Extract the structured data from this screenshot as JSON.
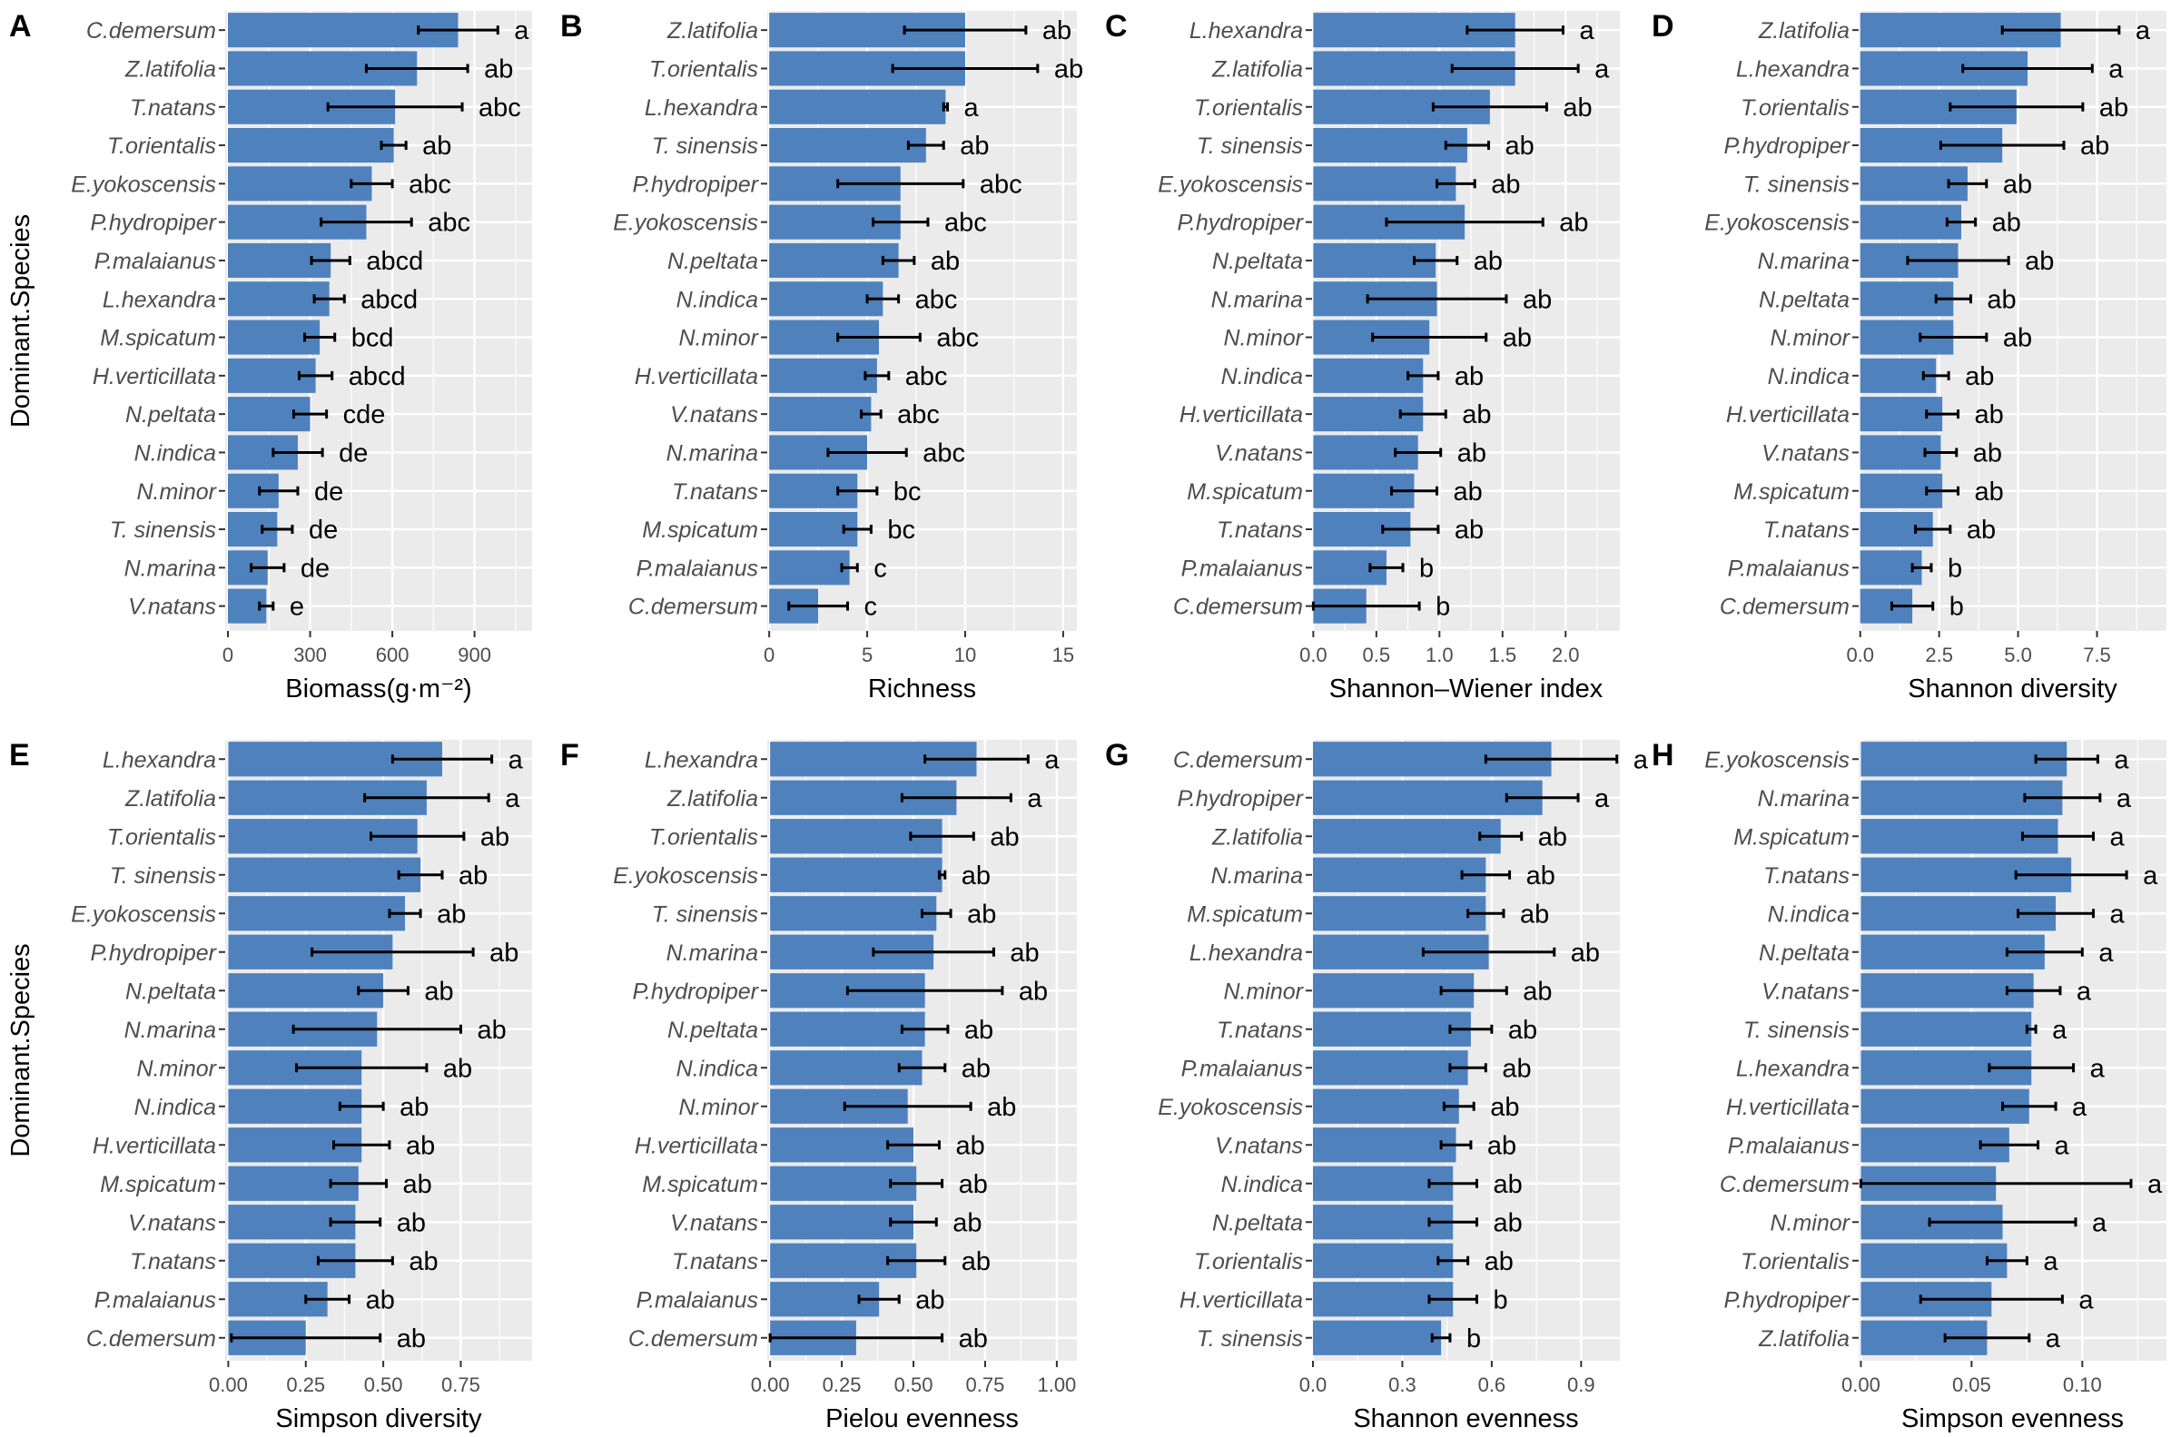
{
  "colors": {
    "bar": "#4f81bd",
    "panel_bg": "#ebebeb",
    "grid": "#ffffff",
    "error_bar": "#000000"
  },
  "ylabel_left": "Dominant.Species",
  "chart_data": [
    {
      "type": "bar",
      "orientation": "horizontal",
      "panel_label": "A",
      "title": "",
      "xlabel": "Biomass(g·m⁻²)",
      "ylabel": "Dominant.Species",
      "xlim": [
        -10,
        1110
      ],
      "xticks": [
        0,
        300,
        600,
        900
      ],
      "xtick_labels": [
        "0",
        "300",
        "600",
        "900"
      ],
      "categories": [
        "C.demersum",
        "Z.latifolia",
        "T.natans",
        "T.orientalis",
        "E.yokoscensis",
        "P.hydropiper",
        "P.malaianus",
        "L.hexandra",
        "M.spicatum",
        "H.verticillata",
        "N.peltata",
        "N.indica",
        "N.minor",
        "T. sinensis",
        "N.marina",
        "V.natans"
      ],
      "values": [
        840,
        690,
        610,
        605,
        525,
        505,
        375,
        370,
        335,
        320,
        300,
        255,
        185,
        180,
        145,
        140
      ],
      "errors": [
        145,
        185,
        245,
        45,
        75,
        165,
        70,
        55,
        55,
        60,
        60,
        90,
        70,
        55,
        60,
        25
      ],
      "letters": [
        "a",
        "ab",
        "abc",
        "ab",
        "abc",
        "abc",
        "abcd",
        "abcd",
        "bcd",
        "abcd",
        "cde",
        "de",
        "de",
        "de",
        "de",
        "e"
      ]
    },
    {
      "type": "bar",
      "orientation": "horizontal",
      "panel_label": "B",
      "title": "",
      "xlabel": "Richness",
      "ylabel": "",
      "xlim": [
        -0.1,
        15.7
      ],
      "xticks": [
        0,
        5,
        10,
        15
      ],
      "xtick_labels": [
        "0",
        "5",
        "10",
        "15"
      ],
      "categories": [
        "Z.latifolia",
        "T.orientalis",
        "L.hexandra",
        "T. sinensis",
        "P.hydropiper",
        "E.yokoscensis",
        "N.peltata",
        "N.indica",
        "N.minor",
        "H.verticillata",
        "V.natans",
        "N.marina",
        "T.natans",
        "M.spicatum",
        "P.malaianus",
        "C.demersum"
      ],
      "values": [
        10,
        10,
        9,
        8,
        6.7,
        6.7,
        6.6,
        5.8,
        5.6,
        5.5,
        5.2,
        5,
        4.5,
        4.5,
        4.1,
        2.5
      ],
      "errors": [
        3.1,
        3.7,
        0.1,
        0.9,
        3.2,
        1.4,
        0.8,
        0.8,
        2.1,
        0.6,
        0.5,
        2,
        1,
        0.7,
        0.4,
        1.5
      ],
      "letters": [
        "ab",
        "ab",
        "a",
        "ab",
        "abc",
        "abc",
        "ab",
        "abc",
        "abc",
        "abc",
        "abc",
        "abc",
        "bc",
        "bc",
        "c",
        "c"
      ]
    },
    {
      "type": "bar",
      "orientation": "horizontal",
      "panel_label": "C",
      "title": "",
      "xlabel": "Shannon–Wiener index",
      "ylabel": "",
      "xlim": [
        -0.01,
        2.43
      ],
      "xticks": [
        0,
        0.5,
        1,
        1.5,
        2
      ],
      "xtick_labels": [
        "0.0",
        "0.5",
        "1.0",
        "1.5",
        "2.0"
      ],
      "categories": [
        "L.hexandra",
        "Z.latifolia",
        "T.orientalis",
        "T. sinensis",
        "E.yokoscensis",
        "P.hydropiper",
        "N.peltata",
        "N.marina",
        "N.minor",
        "N.indica",
        "H.verticillata",
        "V.natans",
        "M.spicatum",
        "T.natans",
        "P.malaianus",
        "C.demersum"
      ],
      "values": [
        1.6,
        1.6,
        1.4,
        1.22,
        1.13,
        1.2,
        0.97,
        0.98,
        0.92,
        0.87,
        0.87,
        0.83,
        0.8,
        0.77,
        0.58,
        0.42
      ],
      "errors": [
        0.38,
        0.5,
        0.45,
        0.17,
        0.15,
        0.62,
        0.17,
        0.55,
        0.45,
        0.12,
        0.18,
        0.18,
        0.18,
        0.22,
        0.13,
        0.42
      ],
      "letters": [
        "a",
        "a",
        "ab",
        "ab",
        "ab",
        "ab",
        "ab",
        "ab",
        "ab",
        "ab",
        "ab",
        "ab",
        "ab",
        "ab",
        "b",
        "b"
      ]
    },
    {
      "type": "bar",
      "orientation": "horizontal",
      "panel_label": "D",
      "title": "",
      "xlabel": "Shannon diversity",
      "ylabel": "",
      "xlim": [
        -0.05,
        9.7
      ],
      "xticks": [
        0,
        2.5,
        5,
        7.5
      ],
      "xtick_labels": [
        "0.0",
        "2.5",
        "5.0",
        "7.5"
      ],
      "categories": [
        "Z.latifolia",
        "L.hexandra",
        "T.orientalis",
        "P.hydropiper",
        "T. sinensis",
        "E.yokoscensis",
        "N.marina",
        "N.peltata",
        "N.minor",
        "N.indica",
        "H.verticillata",
        "V.natans",
        "M.spicatum",
        "T.natans",
        "P.malaianus",
        "C.demersum"
      ],
      "values": [
        6.35,
        5.3,
        4.95,
        4.5,
        3.4,
        3.2,
        3.1,
        2.95,
        2.95,
        2.4,
        2.6,
        2.55,
        2.6,
        2.3,
        1.95,
        1.65
      ],
      "errors": [
        1.85,
        2.05,
        2.1,
        1.95,
        0.6,
        0.45,
        1.6,
        0.55,
        1.05,
        0.4,
        0.5,
        0.5,
        0.5,
        0.55,
        0.3,
        0.65
      ],
      "letters": [
        "a",
        "a",
        "ab",
        "ab",
        "ab",
        "ab",
        "ab",
        "ab",
        "ab",
        "ab",
        "ab",
        "ab",
        "ab",
        "ab",
        "b",
        "b"
      ]
    },
    {
      "type": "bar",
      "orientation": "horizontal",
      "panel_label": "E",
      "title": "",
      "xlabel": "Simpson diversity",
      "ylabel": "Dominant.Species",
      "xlim": [
        -0.01,
        0.98
      ],
      "xticks": [
        0,
        0.25,
        0.5,
        0.75
      ],
      "xtick_labels": [
        "0.00",
        "0.25",
        "0.50",
        "0.75"
      ],
      "categories": [
        "L.hexandra",
        "Z.latifolia",
        "T.orientalis",
        "T. sinensis",
        "E.yokoscensis",
        "P.hydropiper",
        "N.peltata",
        "N.marina",
        "N.minor",
        "N.indica",
        "H.verticillata",
        "M.spicatum",
        "V.natans",
        "T.natans",
        "P.malaianus",
        "C.demersum"
      ],
      "values": [
        0.69,
        0.64,
        0.61,
        0.62,
        0.57,
        0.53,
        0.5,
        0.48,
        0.43,
        0.43,
        0.43,
        0.42,
        0.41,
        0.41,
        0.32,
        0.25
      ],
      "errors": [
        0.16,
        0.2,
        0.15,
        0.07,
        0.05,
        0.26,
        0.08,
        0.27,
        0.21,
        0.07,
        0.09,
        0.09,
        0.08,
        0.12,
        0.07,
        0.24
      ],
      "letters": [
        "a",
        "a",
        "ab",
        "ab",
        "ab",
        "ab",
        "ab",
        "ab",
        "ab",
        "ab",
        "ab",
        "ab",
        "ab",
        "ab",
        "ab",
        "ab"
      ]
    },
    {
      "type": "bar",
      "orientation": "horizontal",
      "panel_label": "F",
      "title": "",
      "xlabel": "Pielou evenness",
      "ylabel": "",
      "xlim": [
        -0.01,
        1.07
      ],
      "xticks": [
        0,
        0.25,
        0.5,
        0.75,
        1
      ],
      "xtick_labels": [
        "0.00",
        "0.25",
        "0.50",
        "0.75",
        "1.00"
      ],
      "categories": [
        "L.hexandra",
        "Z.latifolia",
        "T.orientalis",
        "E.yokoscensis",
        "T. sinensis",
        "N.marina",
        "P.hydropiper",
        "N.peltata",
        "N.indica",
        "N.minor",
        "H.verticillata",
        "M.spicatum",
        "V.natans",
        "T.natans",
        "P.malaianus",
        "C.demersum"
      ],
      "values": [
        0.72,
        0.65,
        0.6,
        0.6,
        0.58,
        0.57,
        0.54,
        0.54,
        0.53,
        0.48,
        0.5,
        0.51,
        0.5,
        0.51,
        0.38,
        0.3
      ],
      "errors": [
        0.18,
        0.19,
        0.11,
        0.01,
        0.05,
        0.21,
        0.27,
        0.08,
        0.08,
        0.22,
        0.09,
        0.09,
        0.08,
        0.1,
        0.07,
        0.3
      ],
      "letters": [
        "a",
        "a",
        "ab",
        "ab",
        "ab",
        "ab",
        "ab",
        "ab",
        "ab",
        "ab",
        "ab",
        "ab",
        "ab",
        "ab",
        "ab",
        "ab"
      ]
    },
    {
      "type": "bar",
      "orientation": "horizontal",
      "panel_label": "G",
      "title": "",
      "xlabel": "Shannon evenness",
      "ylabel": "",
      "xlim": [
        -0.003,
        1.03
      ],
      "xticks": [
        0,
        0.3,
        0.6,
        0.9
      ],
      "xtick_labels": [
        "0.0",
        "0.3",
        "0.6",
        "0.9"
      ],
      "categories": [
        "C.demersum",
        "P.hydropiper",
        "Z.latifolia",
        "N.marina",
        "M.spicatum",
        "L.hexandra",
        "N.minor",
        "T.natans",
        "P.malaianus",
        "E.yokoscensis",
        "V.natans",
        "N.indica",
        "N.peltata",
        "T.orientalis",
        "H.verticillata",
        "T. sinensis"
      ],
      "values": [
        0.8,
        0.77,
        0.63,
        0.58,
        0.58,
        0.59,
        0.54,
        0.53,
        0.52,
        0.49,
        0.48,
        0.47,
        0.47,
        0.47,
        0.47,
        0.43
      ],
      "errors": [
        0.22,
        0.12,
        0.07,
        0.08,
        0.06,
        0.22,
        0.11,
        0.07,
        0.06,
        0.05,
        0.05,
        0.08,
        0.08,
        0.05,
        0.08,
        0.03
      ],
      "letters": [
        "a",
        "a",
        "ab",
        "ab",
        "ab",
        "ab",
        "ab",
        "ab",
        "ab",
        "ab",
        "ab",
        "ab",
        "ab",
        "ab",
        "b",
        "b"
      ]
    },
    {
      "type": "bar",
      "orientation": "horizontal",
      "panel_label": "H",
      "title": "",
      "xlabel": "Simpson evenness",
      "ylabel": "",
      "xlim": [
        -0.001,
        0.138
      ],
      "xticks": [
        0,
        0.05,
        0.1
      ],
      "xtick_labels": [
        "0.00",
        "0.05",
        "0.10"
      ],
      "categories": [
        "E.yokoscensis",
        "N.marina",
        "M.spicatum",
        "T.natans",
        "N.indica",
        "N.peltata",
        "V.natans",
        "T. sinensis",
        "L.hexandra",
        "H.verticillata",
        "P.malaianus",
        "C.demersum",
        "N.minor",
        "T.orientalis",
        "P.hydropiper",
        "Z.latifolia"
      ],
      "values": [
        0.093,
        0.091,
        0.089,
        0.095,
        0.088,
        0.083,
        0.078,
        0.077,
        0.077,
        0.076,
        0.067,
        0.061,
        0.064,
        0.066,
        0.059,
        0.057
      ],
      "errors": [
        0.014,
        0.017,
        0.016,
        0.025,
        0.017,
        0.017,
        0.012,
        0.002,
        0.019,
        0.012,
        0.013,
        0.061,
        0.033,
        0.009,
        0.032,
        0.019
      ],
      "letters": [
        "a",
        "a",
        "a",
        "a",
        "a",
        "a",
        "a",
        "a",
        "a",
        "a",
        "a",
        "a",
        "a",
        "a",
        "a",
        "a"
      ]
    }
  ]
}
